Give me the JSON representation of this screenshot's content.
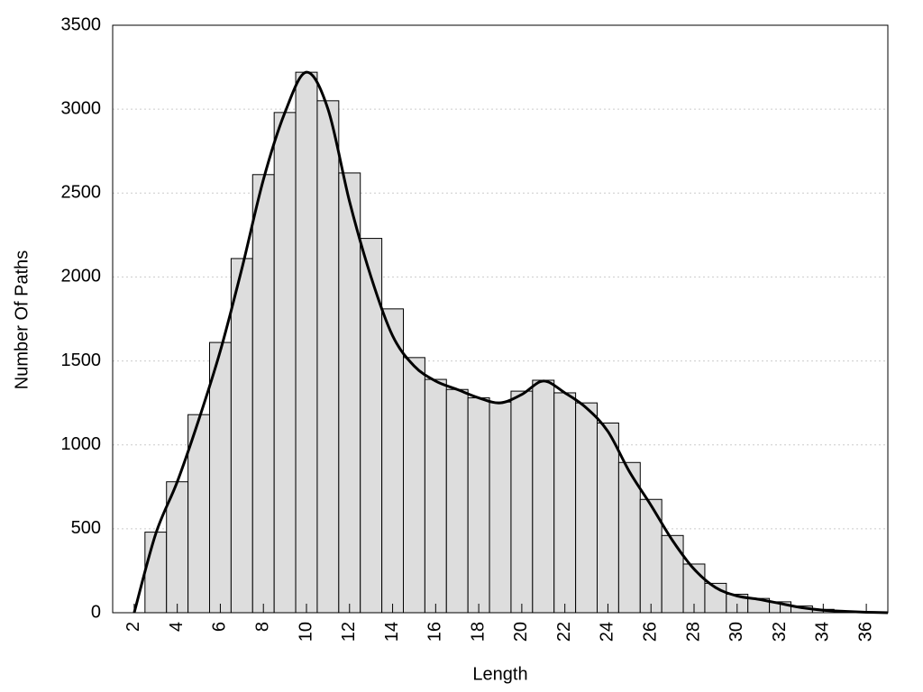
{
  "chart_data": {
    "type": "histogram",
    "xlabel": "Length",
    "ylabel": "Number Of Paths",
    "bins": [
      2.5,
      3.5,
      4.5,
      5.5,
      6.5,
      7.5,
      8.5,
      9.5,
      10.5,
      11.5,
      12.5,
      13.5,
      14.5,
      15.5,
      16.5,
      17.5,
      18.5,
      19.5,
      20.5,
      21.5,
      22.5,
      23.5,
      24.5,
      25.5,
      26.5,
      27.5,
      28.5,
      29.5,
      30.5,
      31.5,
      32.5,
      33.5,
      34.5,
      35.5,
      36.5
    ],
    "values": [
      480,
      780,
      1180,
      1610,
      2110,
      2610,
      2980,
      3220,
      3050,
      2620,
      2230,
      1810,
      1520,
      1390,
      1330,
      1280,
      1255,
      1320,
      1385,
      1310,
      1250,
      1130,
      895,
      675,
      460,
      290,
      175,
      110,
      85,
      65,
      40,
      20,
      10,
      5
    ],
    "color": "#dddddd",
    "line": {
      "color": "#000000",
      "x": [
        2,
        3,
        4,
        5,
        6,
        7,
        8,
        9,
        10,
        11,
        12,
        13,
        14,
        15,
        16,
        17,
        18,
        19,
        20,
        21,
        22,
        23,
        24,
        25,
        26,
        27,
        28,
        29,
        30,
        31,
        32,
        33,
        34,
        35,
        36,
        37
      ],
      "values": [
        0,
        470,
        780,
        1150,
        1560,
        2050,
        2580,
        2980,
        3220,
        3000,
        2450,
        2000,
        1650,
        1470,
        1380,
        1330,
        1280,
        1250,
        1300,
        1380,
        1310,
        1220,
        1080,
        840,
        640,
        430,
        260,
        150,
        100,
        80,
        55,
        30,
        15,
        8,
        3,
        0
      ]
    },
    "xlim": [
      1,
      37
    ],
    "xticks": [
      2,
      4,
      6,
      8,
      10,
      12,
      14,
      16,
      18,
      20,
      22,
      24,
      26,
      28,
      30,
      32,
      34,
      36
    ],
    "ylim": [
      0,
      3500
    ],
    "yticks": [
      0,
      500,
      1000,
      1500,
      2000,
      2500,
      3000,
      3500
    ],
    "grid": true
  }
}
